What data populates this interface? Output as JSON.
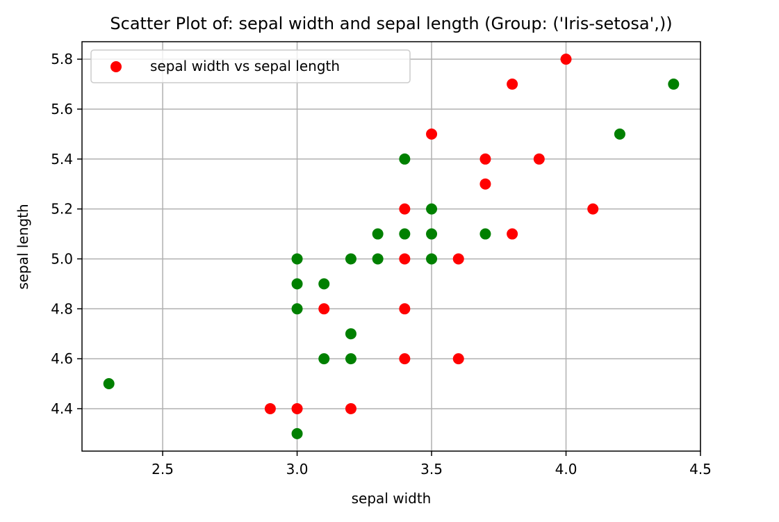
{
  "chart_data": {
    "type": "scatter",
    "title": "Scatter Plot of: sepal width and sepal length (Group: ('Iris-setosa',))",
    "xlabel": "sepal width",
    "ylabel": "sepal length",
    "xlim": [
      2.2,
      4.5
    ],
    "ylim": [
      4.23,
      5.87
    ],
    "xticks": [
      2.5,
      3.0,
      3.5,
      4.0,
      4.5
    ],
    "xtick_labels": [
      "2.5",
      "3.0",
      "3.5",
      "4.0",
      "4.5"
    ],
    "yticks": [
      4.4,
      4.6,
      4.8,
      5.0,
      5.2,
      5.4,
      5.6,
      5.8
    ],
    "ytick_labels": [
      "4.4",
      "4.6",
      "4.8",
      "5.0",
      "5.2",
      "5.4",
      "5.6",
      "5.8"
    ],
    "grid": true,
    "legend": {
      "position": "upper-left",
      "entries": [
        {
          "label": "sepal width vs sepal length",
          "color": "#ff0000"
        }
      ]
    },
    "series": [
      {
        "color": "#ff0000",
        "points": [
          {
            "x": 4.0,
            "y": 5.8
          },
          {
            "x": 3.8,
            "y": 5.7
          },
          {
            "x": 3.5,
            "y": 5.5
          },
          {
            "x": 3.7,
            "y": 5.4
          },
          {
            "x": 3.9,
            "y": 5.4
          },
          {
            "x": 3.7,
            "y": 5.3
          },
          {
            "x": 3.4,
            "y": 5.2
          },
          {
            "x": 4.1,
            "y": 5.2
          },
          {
            "x": 3.8,
            "y": 5.1
          },
          {
            "x": 3.4,
            "y": 5.0
          },
          {
            "x": 3.6,
            "y": 5.0
          },
          {
            "x": 3.1,
            "y": 4.8
          },
          {
            "x": 3.4,
            "y": 4.8
          },
          {
            "x": 3.4,
            "y": 4.6
          },
          {
            "x": 3.6,
            "y": 4.6
          },
          {
            "x": 2.9,
            "y": 4.4
          },
          {
            "x": 3.0,
            "y": 4.4
          },
          {
            "x": 3.2,
            "y": 4.4
          }
        ]
      },
      {
        "color": "#008000",
        "points": [
          {
            "x": 4.4,
            "y": 5.7
          },
          {
            "x": 4.2,
            "y": 5.5
          },
          {
            "x": 3.4,
            "y": 5.4
          },
          {
            "x": 3.5,
            "y": 5.2
          },
          {
            "x": 3.3,
            "y": 5.1
          },
          {
            "x": 3.4,
            "y": 5.1
          },
          {
            "x": 3.5,
            "y": 5.1
          },
          {
            "x": 3.7,
            "y": 5.1
          },
          {
            "x": 3.0,
            "y": 5.0
          },
          {
            "x": 3.2,
            "y": 5.0
          },
          {
            "x": 3.3,
            "y": 5.0
          },
          {
            "x": 3.5,
            "y": 5.0
          },
          {
            "x": 3.0,
            "y": 4.9
          },
          {
            "x": 3.1,
            "y": 4.9
          },
          {
            "x": 3.0,
            "y": 4.8
          },
          {
            "x": 3.2,
            "y": 4.7
          },
          {
            "x": 3.1,
            "y": 4.6
          },
          {
            "x": 3.2,
            "y": 4.6
          },
          {
            "x": 2.3,
            "y": 4.5
          },
          {
            "x": 3.0,
            "y": 4.3
          }
        ]
      }
    ]
  }
}
